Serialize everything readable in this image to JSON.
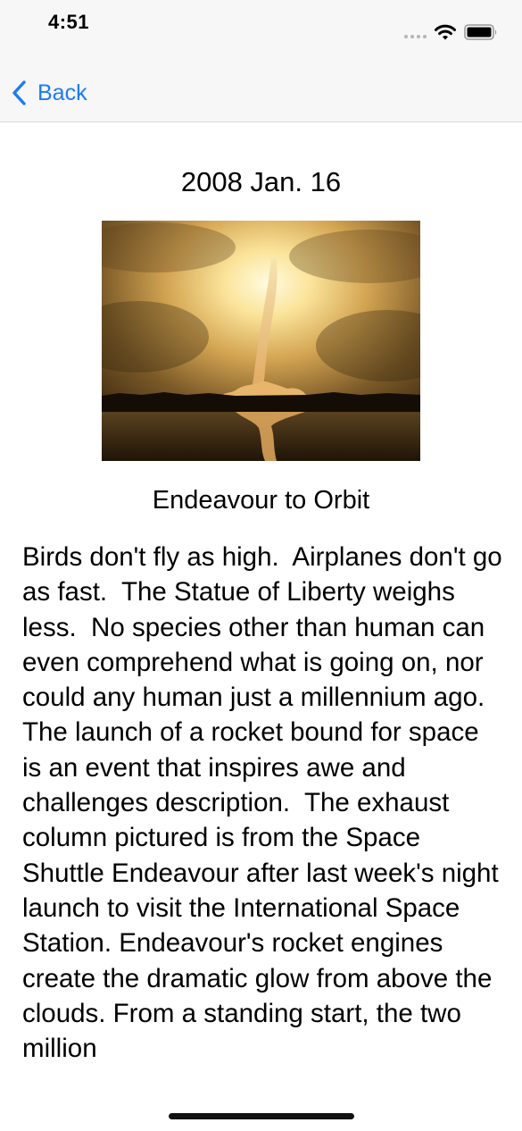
{
  "status_bar": {
    "time": "4:51",
    "icons": [
      "signal-dots-icon",
      "wifi-icon",
      "battery-icon"
    ]
  },
  "nav": {
    "back_label": "Back",
    "back_icon": "chevron-left-icon",
    "accent_color": "#1a7cf4"
  },
  "article": {
    "date": "2008 Jan. 16",
    "image_title": "Endeavour to Orbit",
    "body": "Birds don't fly as high.  Airplanes don't go as fast.  The Statue of Liberty weighs less.  No species other than human can even comprehend what is going on, nor could any human just a millennium ago.  The launch of a rocket bound for space is an event that inspires awe and challenges description.  The exhaust column pictured is from the Space Shuttle Endeavour after last week's night launch to visit the International Space Station. Endeavour's rocket engines create the dramatic glow from above the clouds. From a standing start, the two million"
  }
}
